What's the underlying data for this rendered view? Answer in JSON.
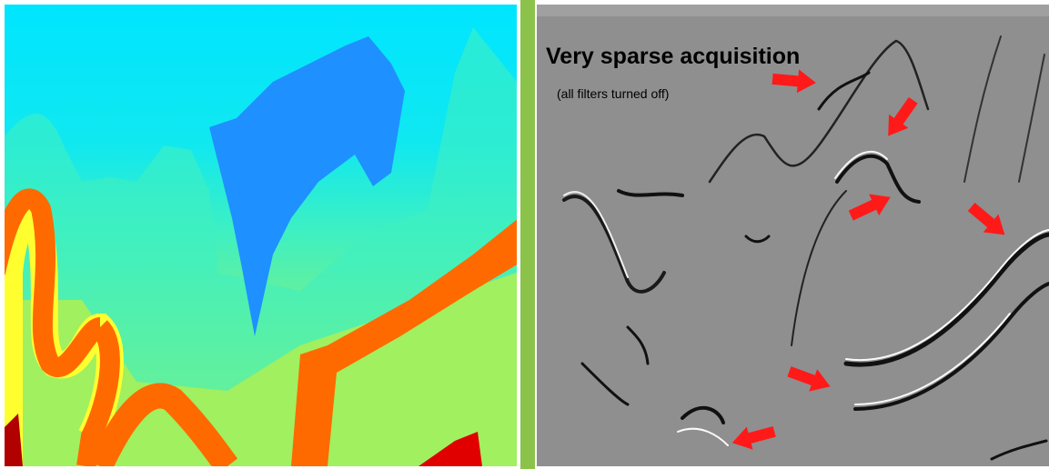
{
  "annotation": {
    "title": "Very sparse acquisition",
    "subtitle": "(all filters turned off)"
  }
}
